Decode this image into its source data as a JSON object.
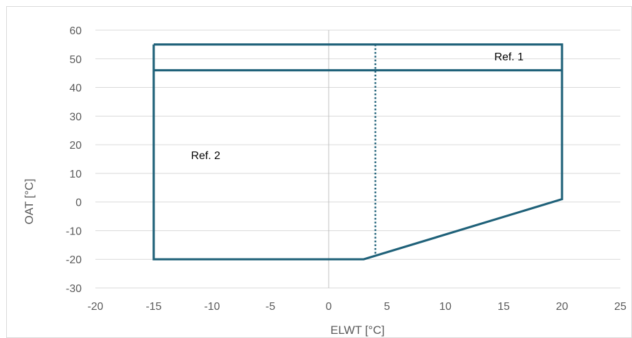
{
  "chart_data": {
    "type": "scatter",
    "title": "",
    "xlabel": "ELWT [°C]",
    "ylabel": "OAT  [°C]",
    "xlim": [
      -20,
      25
    ],
    "ylim": [
      -30,
      60
    ],
    "x_ticks": [
      -20,
      -15,
      -10,
      -5,
      0,
      5,
      10,
      15,
      20,
      25
    ],
    "y_ticks": [
      -30,
      -20,
      -10,
      0,
      10,
      20,
      30,
      40,
      50,
      60
    ],
    "grid": "horizontal",
    "legend": "none",
    "series": [
      {
        "style": "solid",
        "color": "#1F6179",
        "points": [
          [
            -15,
            55
          ],
          [
            20,
            55
          ],
          [
            20,
            1
          ],
          [
            3,
            -20
          ],
          [
            -15,
            -20
          ],
          [
            -15,
            55
          ]
        ]
      },
      {
        "style": "solid",
        "color": "#1F6179",
        "points": [
          [
            -15,
            46
          ],
          [
            20,
            46
          ]
        ]
      },
      {
        "style": "dotted",
        "color": "#1F6179",
        "points": [
          [
            4,
            55
          ],
          [
            4,
            -18.8
          ]
        ]
      }
    ],
    "annotations": [
      {
        "text": "Ref. 1",
        "x": 14.2,
        "y": 49.5
      },
      {
        "text": "Ref. 2",
        "x": -11.8,
        "y": 15
      }
    ]
  }
}
